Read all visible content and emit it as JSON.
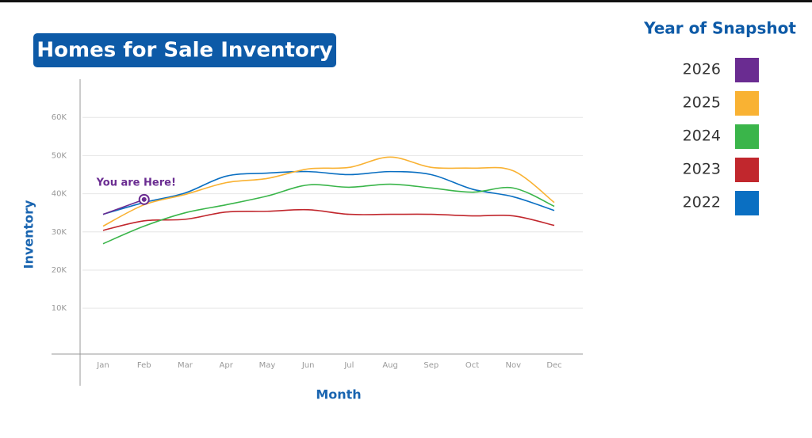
{
  "chart_data": {
    "type": "line",
    "title": "Homes for Sale Inventory",
    "x_label": "Month",
    "y_label": "Inventory",
    "legend_title": "Year of Snapshot",
    "annotation": "You are Here!",
    "categories": [
      "Jan",
      "Feb",
      "Mar",
      "Apr",
      "May",
      "Jun",
      "Jul",
      "Aug",
      "Sep",
      "Oct",
      "Nov",
      "Dec"
    ],
    "series": [
      {
        "name": "2026",
        "color": "#6a2c91",
        "values": [
          34600,
          38500,
          null,
          null,
          null,
          null,
          null,
          null,
          null,
          null,
          null,
          null
        ]
      },
      {
        "name": "2025",
        "color": "#f9b233",
        "values": [
          31500,
          37100,
          39800,
          42900,
          44000,
          46500,
          46900,
          49600,
          46900,
          46700,
          46000,
          37700
        ]
      },
      {
        "name": "2024",
        "color": "#3ab54a",
        "values": [
          26900,
          31500,
          35000,
          37100,
          39400,
          42300,
          41700,
          42500,
          41500,
          40400,
          41500,
          36700
        ]
      },
      {
        "name": "2023",
        "color": "#c1272d",
        "values": [
          30400,
          32900,
          33300,
          35200,
          35400,
          35800,
          34600,
          34600,
          34600,
          34200,
          34200,
          31700
        ]
      },
      {
        "name": "2022",
        "color": "#0a6fc2",
        "values": [
          34600,
          37700,
          40200,
          44600,
          45400,
          45800,
          45000,
          45800,
          45000,
          41200,
          39200,
          35600
        ]
      }
    ],
    "ylim": [
      -2000,
      70000
    ],
    "yticks": [
      {
        "value": 10000,
        "label": "10K"
      },
      {
        "value": 20000,
        "label": "20K"
      },
      {
        "value": 30000,
        "label": "30K"
      },
      {
        "value": 40000,
        "label": "40K"
      },
      {
        "value": 50000,
        "label": "50K"
      },
      {
        "value": 60000,
        "label": "60K"
      }
    ],
    "grid": true
  }
}
